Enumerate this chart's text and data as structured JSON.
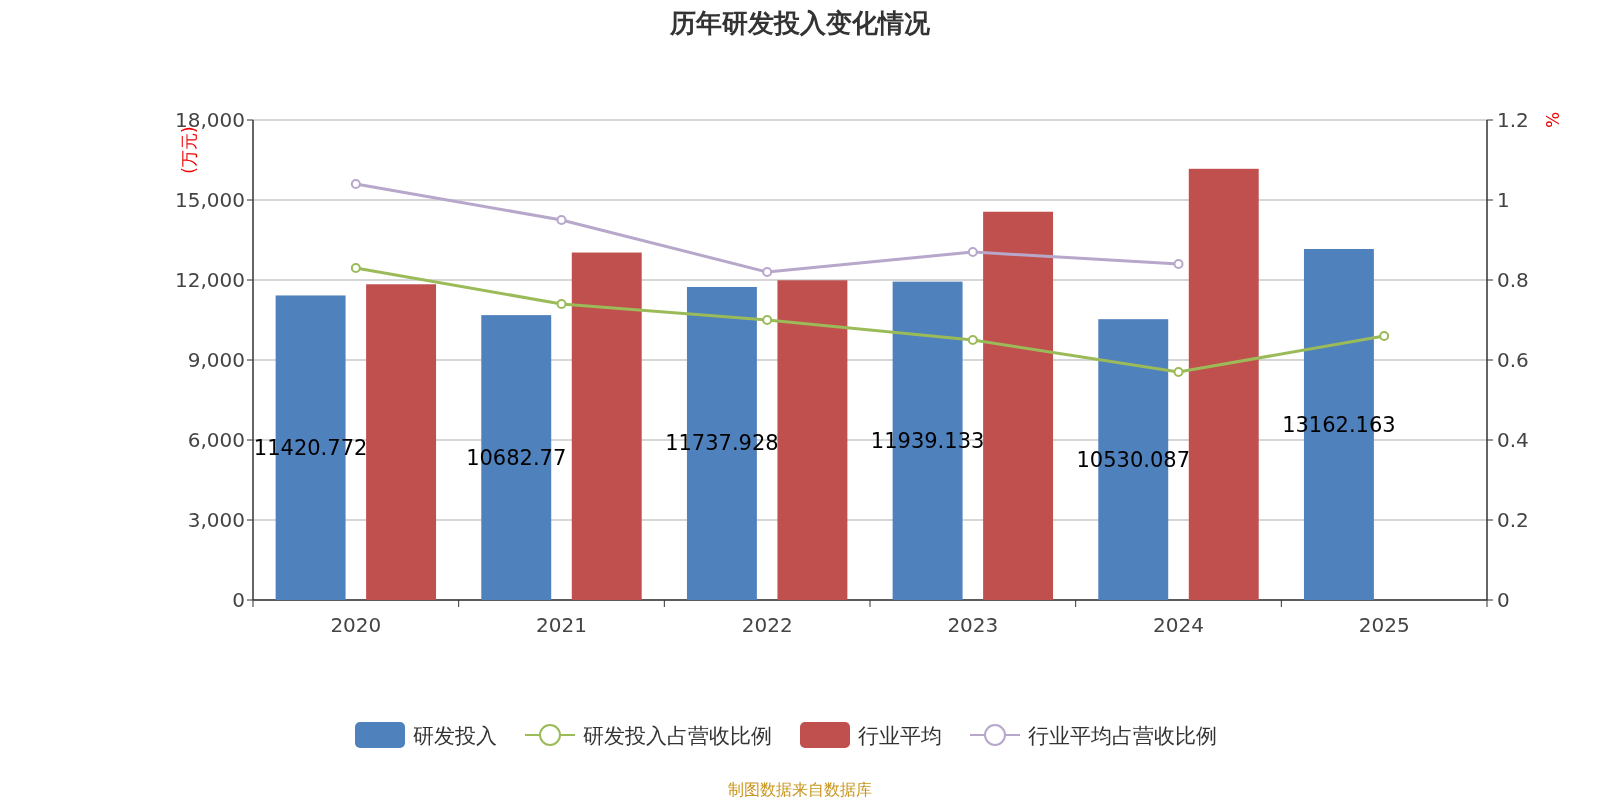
{
  "chart_data": {
    "type": "bar",
    "title": "历年研发投入变化情况",
    "ylabel": "(万元)",
    "y2label": "%",
    "categories": [
      "2020",
      "2021",
      "2022",
      "2023",
      "2024",
      "2025"
    ],
    "series": [
      {
        "name": "研发投入",
        "color": "#4f81bd",
        "values": [
          11420.772,
          10682.77,
          11737.928,
          11939.133,
          10530.087,
          13162.163
        ],
        "data_labels": true
      },
      {
        "name": "研发投入占营收比例",
        "type": "line",
        "axis": "y2",
        "color": "#9bbb59",
        "values": [
          0.83,
          0.74,
          0.7,
          0.65,
          0.57,
          0.66
        ]
      },
      {
        "name": "行业平均",
        "color": "#c0504d",
        "values": [
          11840,
          13030,
          11990,
          14560,
          16170,
          null
        ]
      },
      {
        "name": "行业平均占营收比例",
        "type": "line",
        "axis": "y2",
        "color": "#b7a7cb",
        "values": [
          1.04,
          0.95,
          0.82,
          0.87,
          0.84,
          null
        ]
      }
    ],
    "ylim": [
      0,
      18000
    ],
    "yticks": [
      {
        "value": 0,
        "label": "0"
      },
      {
        "value": 3000,
        "label": "3,000"
      },
      {
        "value": 6000,
        "label": "6,000"
      },
      {
        "value": 9000,
        "label": "9,000"
      },
      {
        "value": 12000,
        "label": "12,000"
      },
      {
        "value": 15000,
        "label": "15,000"
      },
      {
        "value": 18000,
        "label": "18,000"
      }
    ],
    "y2lim": [
      0,
      1.2
    ],
    "y2ticks": [
      0,
      0.2,
      0.4,
      0.6,
      0.8,
      1,
      1.2
    ],
    "grid": "y",
    "legend": "bottom",
    "marker": "circle",
    "annotations": [
      "制图数据来自数据库"
    ]
  }
}
